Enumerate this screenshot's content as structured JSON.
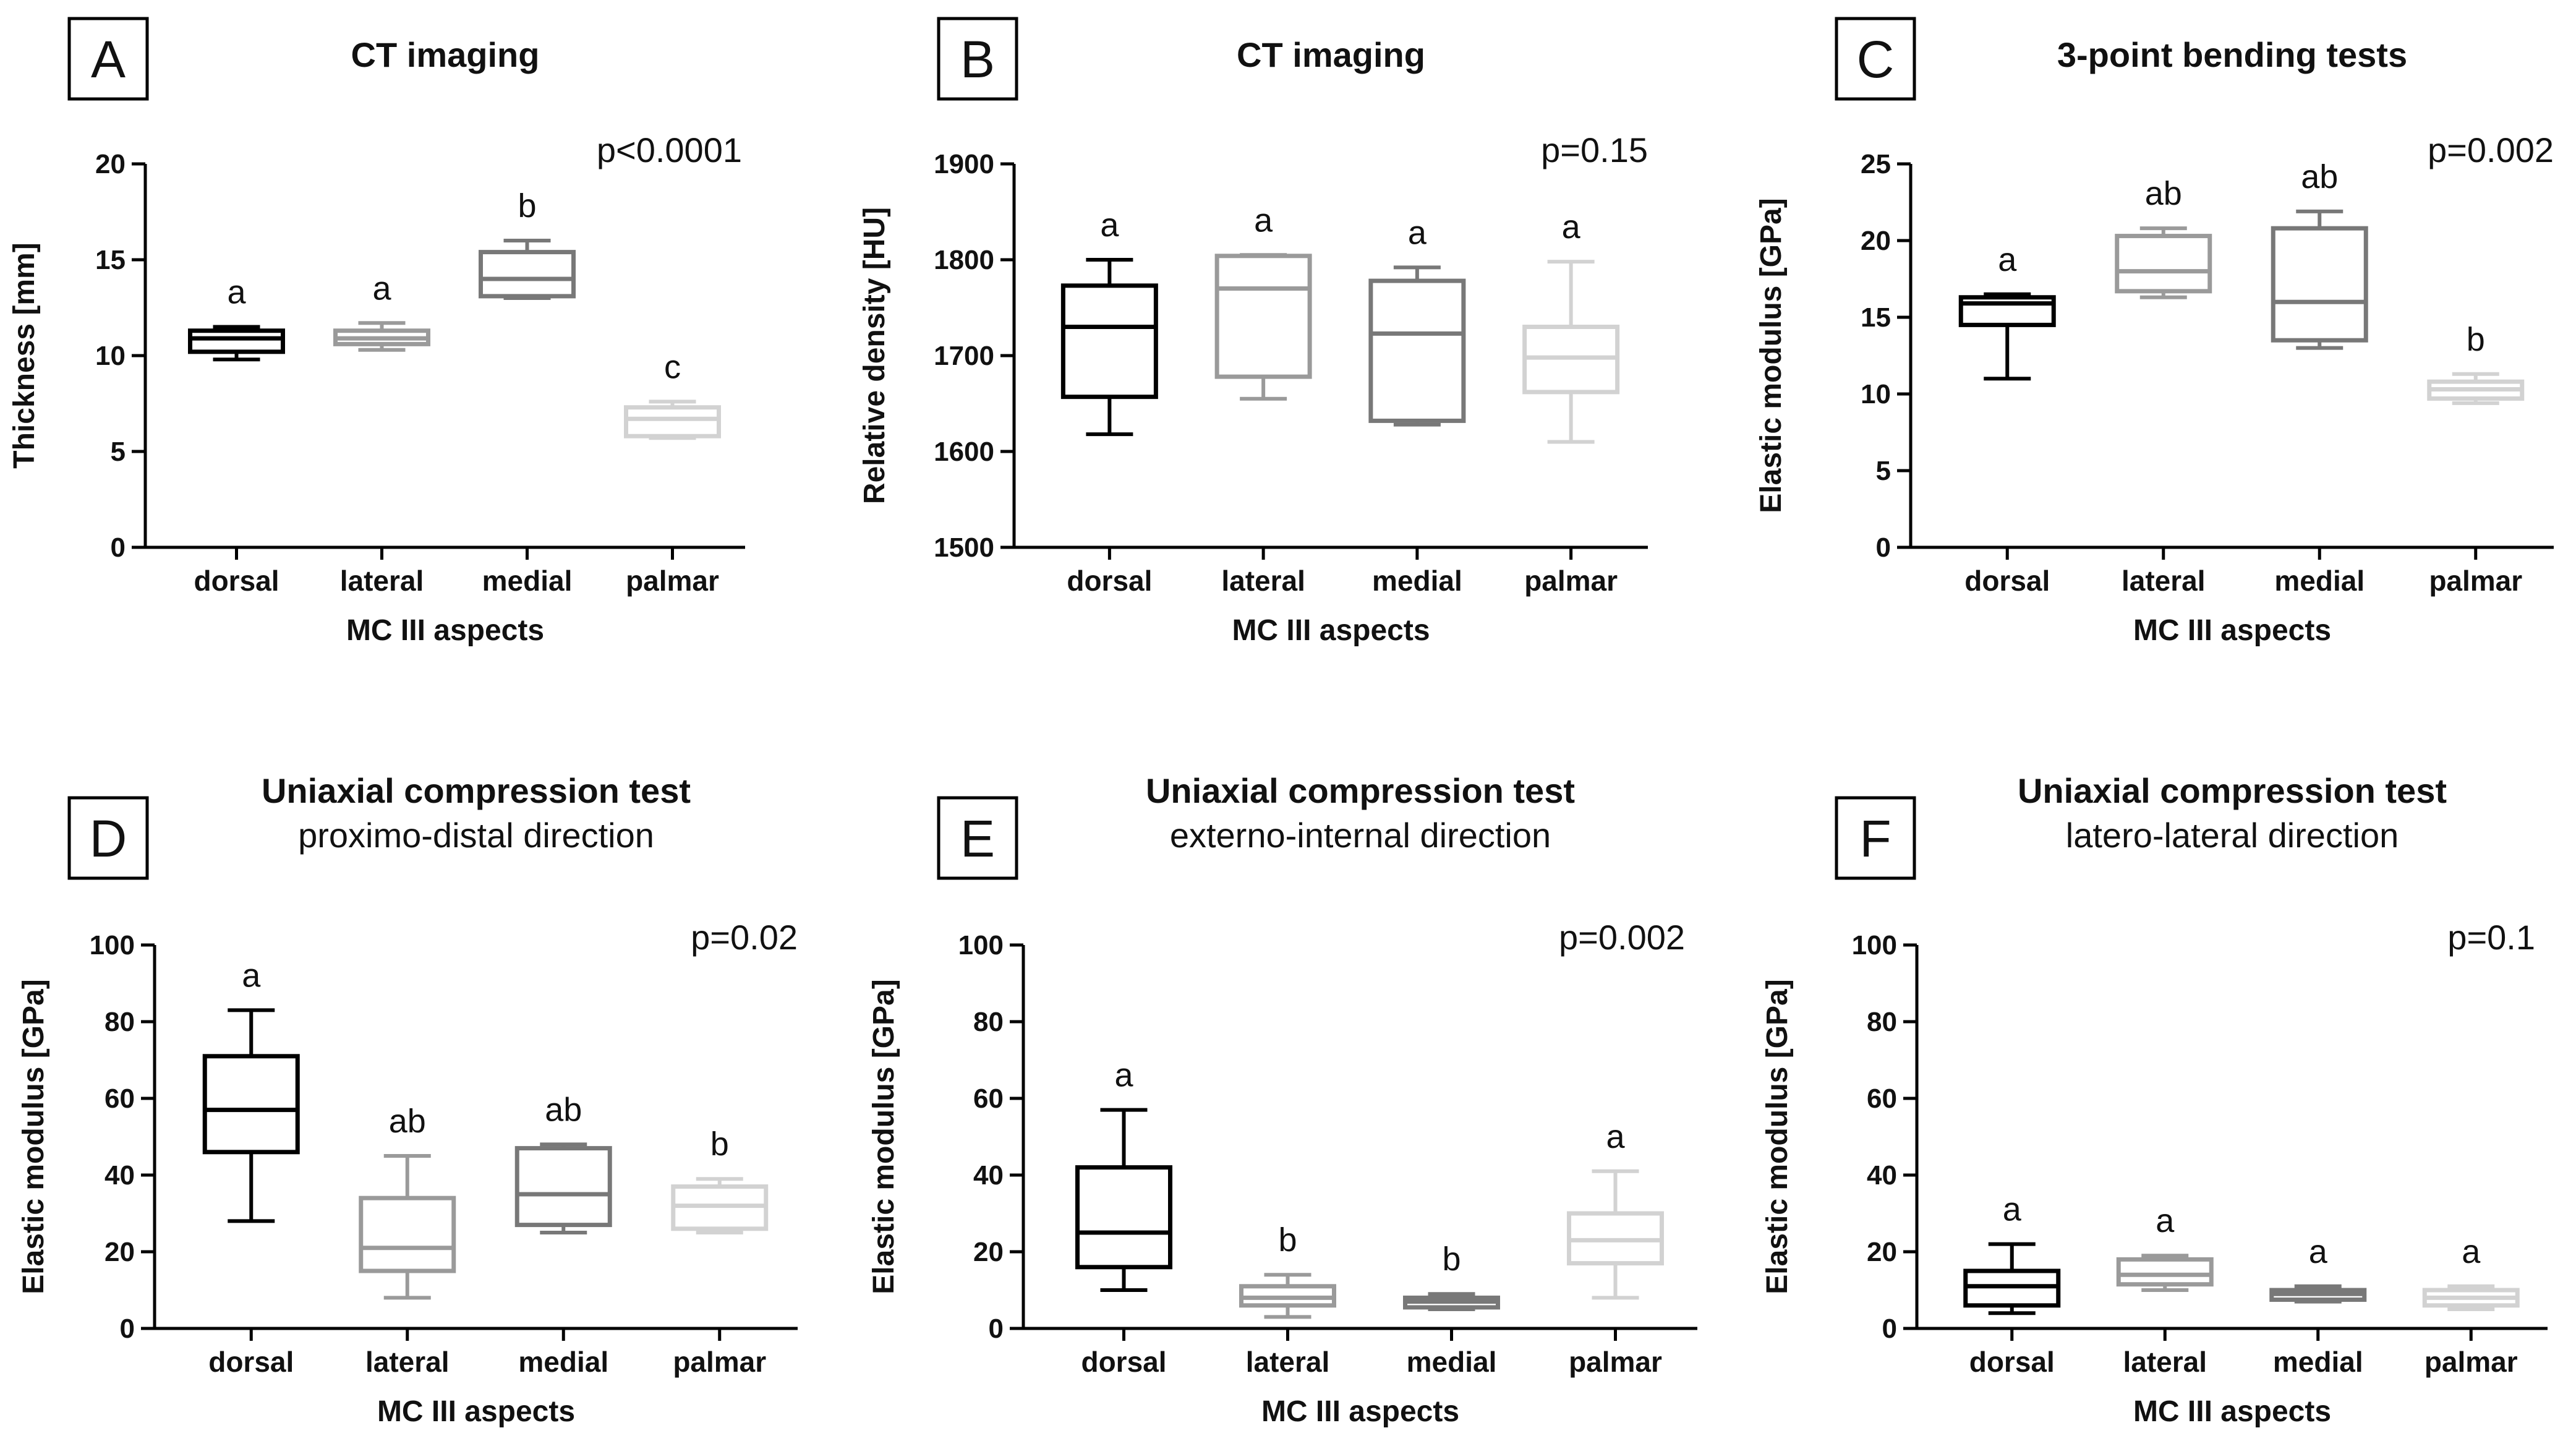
{
  "group_colors": [
    "#000000",
    "#9a9a9a",
    "#787878",
    "#d2d2d2"
  ],
  "chart_data": [
    {
      "type": "box",
      "panel": "A",
      "title": "CT imaging",
      "subtitle": "",
      "xlabel": "MC III aspects",
      "ylabel": "Thickness [mm]",
      "ylim": [
        0,
        20
      ],
      "yticks": [
        0,
        5,
        10,
        15,
        20
      ],
      "p_value": "p<0.0001",
      "categories": [
        "dorsal",
        "lateral",
        "medial",
        "palmar"
      ],
      "boxes": [
        {
          "min": 9.8,
          "q1": 10.2,
          "median": 10.9,
          "q3": 11.3,
          "max": 11.5
        },
        {
          "min": 10.3,
          "q1": 10.6,
          "median": 10.9,
          "q3": 11.3,
          "max": 11.7
        },
        {
          "min": 13.0,
          "q1": 13.1,
          "median": 14.0,
          "q3": 15.4,
          "max": 16.0
        },
        {
          "min": 5.7,
          "q1": 5.8,
          "median": 6.7,
          "q3": 7.3,
          "max": 7.6
        }
      ],
      "significance": [
        "a",
        "a",
        "b",
        "c"
      ]
    },
    {
      "type": "box",
      "panel": "B",
      "title": "CT imaging",
      "subtitle": "",
      "xlabel": "MC III aspects",
      "ylabel": "Relative density [HU]",
      "ylim": [
        1500,
        1900
      ],
      "yticks": [
        1500,
        1600,
        1700,
        1800,
        1900
      ],
      "p_value": "p=0.15",
      "categories": [
        "dorsal",
        "lateral",
        "medial",
        "palmar"
      ],
      "boxes": [
        {
          "min": 1618,
          "q1": 1657,
          "median": 1730,
          "q3": 1773,
          "max": 1800
        },
        {
          "min": 1655,
          "q1": 1678,
          "median": 1770,
          "q3": 1804,
          "max": 1805
        },
        {
          "min": 1628,
          "q1": 1632,
          "median": 1723,
          "q3": 1778,
          "max": 1792
        },
        {
          "min": 1610,
          "q1": 1662,
          "median": 1698,
          "q3": 1730,
          "max": 1798
        }
      ],
      "significance": [
        "a",
        "a",
        "a",
        "a"
      ]
    },
    {
      "type": "box",
      "panel": "C",
      "title": "3-point bending tests",
      "subtitle": "",
      "xlabel": "MC III aspects",
      "ylabel": "Elastic modulus [GPa]",
      "ylim": [
        0,
        25
      ],
      "yticks": [
        0,
        5,
        10,
        15,
        20,
        25
      ],
      "p_value": "p=0.002",
      "categories": [
        "dorsal",
        "lateral",
        "medial",
        "palmar"
      ],
      "boxes": [
        {
          "min": 11.0,
          "q1": 14.5,
          "median": 15.9,
          "q3": 16.3,
          "max": 16.5
        },
        {
          "min": 16.3,
          "q1": 16.7,
          "median": 18.0,
          "q3": 20.3,
          "max": 20.8
        },
        {
          "min": 13.0,
          "q1": 13.5,
          "median": 16.0,
          "q3": 20.8,
          "max": 21.9
        },
        {
          "min": 9.4,
          "q1": 9.7,
          "median": 10.3,
          "q3": 10.8,
          "max": 11.3
        }
      ],
      "significance": [
        "a",
        "ab",
        "ab",
        "b"
      ]
    },
    {
      "type": "box",
      "panel": "D",
      "title": "Uniaxial compression test",
      "subtitle": "proximo-distal direction",
      "xlabel": "MC III aspects",
      "ylabel": "Elastic modulus [GPa]",
      "ylim": [
        0,
        100
      ],
      "yticks": [
        0,
        20,
        40,
        60,
        80,
        100
      ],
      "p_value": "p=0.02",
      "categories": [
        "dorsal",
        "lateral",
        "medial",
        "palmar"
      ],
      "boxes": [
        {
          "min": 28,
          "q1": 46,
          "median": 57,
          "q3": 71,
          "max": 83
        },
        {
          "min": 8,
          "q1": 15,
          "median": 21,
          "q3": 34,
          "max": 45
        },
        {
          "min": 25,
          "q1": 27,
          "median": 35,
          "q3": 47,
          "max": 48
        },
        {
          "min": 25,
          "q1": 26,
          "median": 32,
          "q3": 37,
          "max": 39
        }
      ],
      "significance": [
        "a",
        "ab",
        "ab",
        "b"
      ]
    },
    {
      "type": "box",
      "panel": "E",
      "title": "Uniaxial compression test",
      "subtitle": "externo-internal direction",
      "xlabel": "MC III aspects",
      "ylabel": "Elastic modulus [GPa]",
      "ylim": [
        0,
        100
      ],
      "yticks": [
        0,
        20,
        40,
        60,
        80,
        100
      ],
      "p_value": "p=0.002",
      "categories": [
        "dorsal",
        "lateral",
        "medial",
        "palmar"
      ],
      "boxes": [
        {
          "min": 10,
          "q1": 16,
          "median": 25,
          "q3": 42,
          "max": 57
        },
        {
          "min": 3,
          "q1": 6,
          "median": 8,
          "q3": 11,
          "max": 14
        },
        {
          "min": 5,
          "q1": 5.5,
          "median": 7,
          "q3": 8,
          "max": 9
        },
        {
          "min": 8,
          "q1": 17,
          "median": 23,
          "q3": 30,
          "max": 41
        }
      ],
      "significance": [
        "a",
        "b",
        "b",
        "a"
      ]
    },
    {
      "type": "box",
      "panel": "F",
      "title": "Uniaxial compression test",
      "subtitle": "latero-lateral direction",
      "xlabel": "MC III aspects",
      "ylabel": "Elastic modulus [GPa]",
      "ylim": [
        0,
        100
      ],
      "yticks": [
        0,
        20,
        40,
        60,
        80,
        100
      ],
      "p_value": "p=0.1",
      "categories": [
        "dorsal",
        "lateral",
        "medial",
        "palmar"
      ],
      "boxes": [
        {
          "min": 4,
          "q1": 6,
          "median": 11,
          "q3": 15,
          "max": 22
        },
        {
          "min": 10,
          "q1": 11.5,
          "median": 14,
          "q3": 18,
          "max": 19
        },
        {
          "min": 7,
          "q1": 7.5,
          "median": 9,
          "q3": 10,
          "max": 11
        },
        {
          "min": 5,
          "q1": 6,
          "median": 8,
          "q3": 10,
          "max": 11
        }
      ],
      "significance": [
        "a",
        "a",
        "a",
        "a"
      ]
    }
  ]
}
